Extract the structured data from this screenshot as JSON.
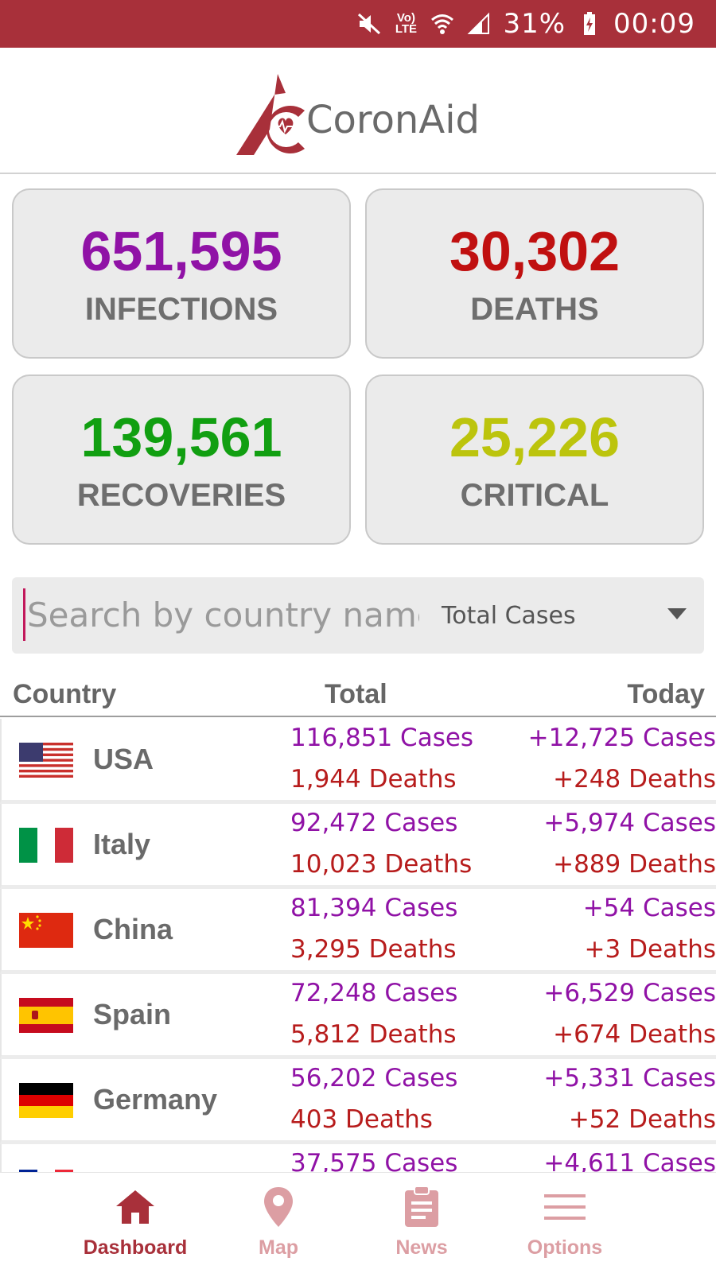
{
  "status_bar": {
    "battery": "31%",
    "time": "00:09",
    "network_label": "Vo) LTE",
    "icons": [
      "mute-icon",
      "lte-icon",
      "wifi-icon",
      "signal-icon",
      "battery-charging-icon"
    ]
  },
  "header": {
    "app_name": "CoronAid",
    "logo_icon": "coronaid-logo-icon"
  },
  "stats": {
    "infections": {
      "value": "651,595",
      "label": "INFECTIONS",
      "color": "#9012a6"
    },
    "deaths": {
      "value": "30,302",
      "label": "DEATHS",
      "color": "#c01010"
    },
    "recoveries": {
      "value": "139,561",
      "label": "RECOVERIES",
      "color": "#119f11"
    },
    "critical": {
      "value": "25,226",
      "label": "CRITICAL",
      "color": "#bcc40d"
    }
  },
  "search": {
    "placeholder": "Search by country name",
    "value": "",
    "sort_selected": "Total Cases",
    "sort_icon": "caret-down-icon"
  },
  "table": {
    "columns": {
      "country": "Country",
      "total": "Total",
      "today": "Today"
    },
    "rows": [
      {
        "country": "USA",
        "flag": "usa",
        "total_cases": "116,851 Cases",
        "total_deaths": "1,944 Deaths",
        "today_cases": "+12,725 Cases",
        "today_deaths": "+248 Deaths"
      },
      {
        "country": "Italy",
        "flag": "italy",
        "total_cases": "92,472 Cases",
        "total_deaths": "10,023 Deaths",
        "today_cases": "+5,974 Cases",
        "today_deaths": "+889 Deaths"
      },
      {
        "country": "China",
        "flag": "china",
        "total_cases": "81,394 Cases",
        "total_deaths": "3,295 Deaths",
        "today_cases": "+54 Cases",
        "today_deaths": "+3 Deaths"
      },
      {
        "country": "Spain",
        "flag": "spain",
        "total_cases": "72,248 Cases",
        "total_deaths": "5,812 Deaths",
        "today_cases": "+6,529 Cases",
        "today_deaths": "+674 Deaths"
      },
      {
        "country": "Germany",
        "flag": "germany",
        "total_cases": "56,202 Cases",
        "total_deaths": "403 Deaths",
        "today_cases": "+5,331 Cases",
        "today_deaths": "+52 Deaths"
      },
      {
        "country": "",
        "flag": "france",
        "total_cases": "37,575 Cases",
        "total_deaths": "",
        "today_cases": "+4,611 Cases",
        "today_deaths": ""
      }
    ]
  },
  "nav": {
    "active_color": "#a8303a",
    "inactive_color": "#dc9ea3",
    "items": [
      {
        "label": "Dashboard",
        "icon": "home-icon",
        "active": true
      },
      {
        "label": "Map",
        "icon": "map-pin-icon",
        "active": false
      },
      {
        "label": "News",
        "icon": "clipboard-icon",
        "active": false
      },
      {
        "label": "Options",
        "icon": "menu-icon",
        "active": false
      }
    ]
  }
}
